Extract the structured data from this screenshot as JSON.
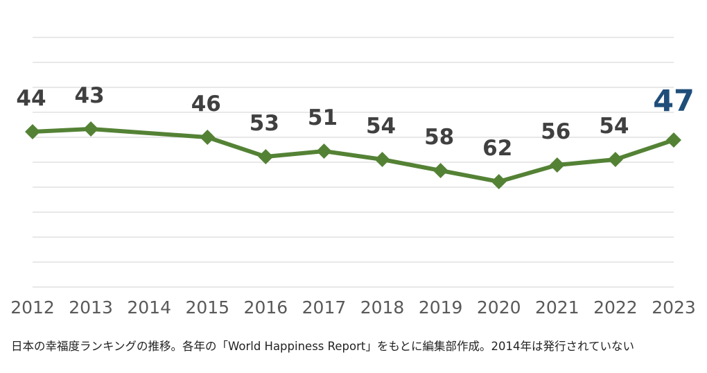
{
  "chart_data": {
    "type": "line",
    "title": "",
    "xlabel": "",
    "ylabel": "",
    "x": [
      "2012",
      "2013",
      "2014",
      "2015",
      "2016",
      "2017",
      "2018",
      "2019",
      "2020",
      "2021",
      "2022",
      "2023"
    ],
    "series": [
      {
        "name": "",
        "values": [
          44,
          43,
          null,
          46,
          53,
          51,
          54,
          58,
          62,
          56,
          54,
          47
        ],
        "color": "#548235"
      }
    ],
    "data_labels": [
      "44",
      "43",
      "",
      "46",
      "53",
      "51",
      "54",
      "58",
      "62",
      "56",
      "54",
      "47"
    ],
    "highlight": {
      "index": 11,
      "color": "#1f4e79"
    },
    "label_color": "#404040",
    "gridline_color": "#d9d9d9",
    "tick_label_color": "#595959",
    "grid": true,
    "legend": "none",
    "y_inverted": true,
    "ylim": [
      10,
      100
    ]
  },
  "caption": "日本の幸福度ランキングの推移。各年の「World Happiness Report」をもとに編集部作成。2014年は発行されていない"
}
